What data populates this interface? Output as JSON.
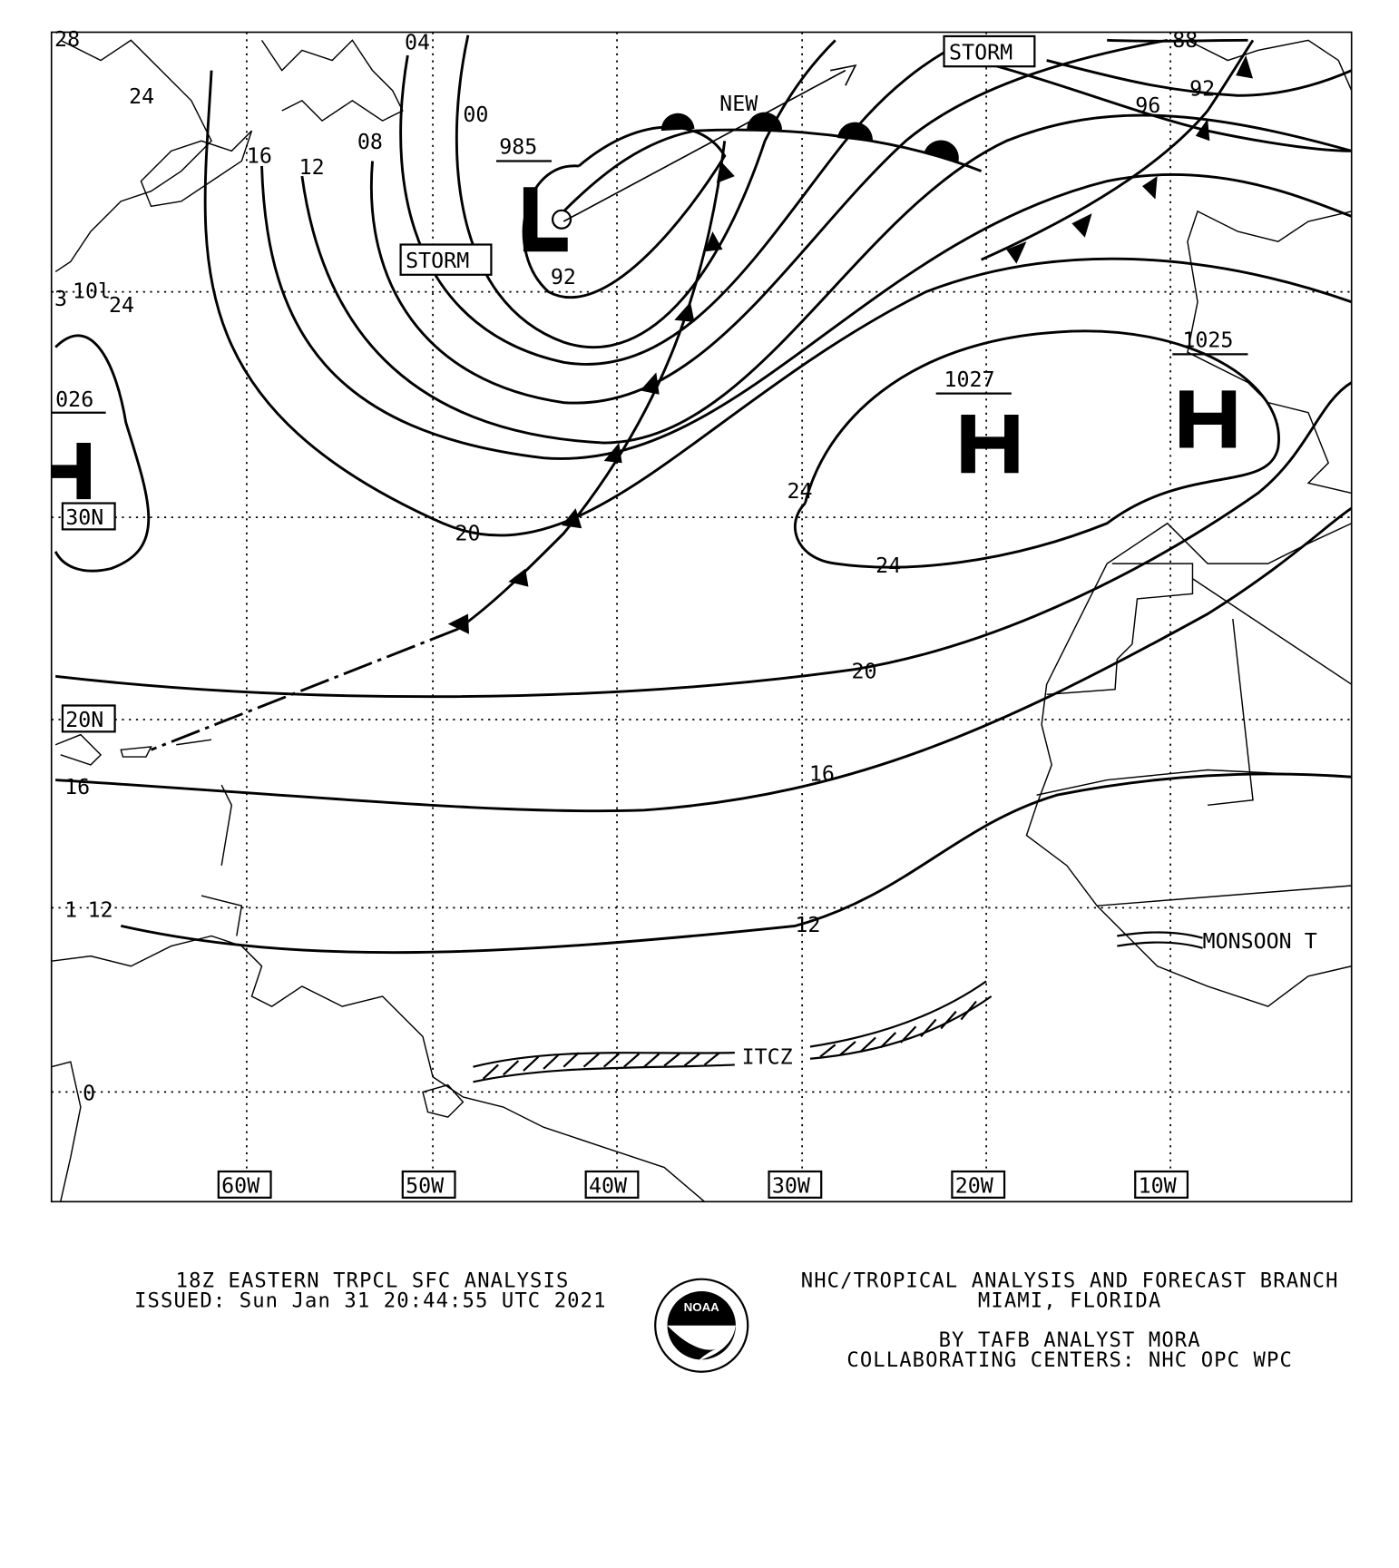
{
  "map": {
    "longitude_labels": [
      "60W",
      "50W",
      "40W",
      "30W",
      "20W",
      "10W"
    ],
    "latitude_labels": [
      "30N",
      "20N"
    ],
    "pressure_centers": [
      {
        "type": "L",
        "pressure": "985",
        "label": "STORM"
      },
      {
        "type": "H",
        "pressure": "1027"
      },
      {
        "type": "H",
        "pressure": "1025"
      },
      {
        "type": "H",
        "pressure": "026"
      }
    ],
    "storm_labels": [
      "STORM",
      "STORM"
    ],
    "new_label": "NEW",
    "isobar_labels": [
      "28",
      "24",
      "16",
      "12",
      "08",
      "04",
      "00",
      "92",
      "88",
      "92",
      "96",
      "24",
      "24",
      "24",
      "20",
      "20",
      "16",
      "16",
      "12",
      "12",
      "0"
    ],
    "feature_labels": {
      "itcz": "ITCZ",
      "monsoon": "MONSOON T"
    },
    "partial_labels": [
      "3",
      "10l",
      "1"
    ]
  },
  "footer": {
    "title": "18Z EASTERN TRPCL SFC ANALYSIS",
    "issued": "ISSUED: Sun Jan 31 20:44:55 UTC 2021",
    "org": "NHC/TROPICAL ANALYSIS AND FORECAST BRANCH",
    "location": "MIAMI,  FLORIDA",
    "analyst": "BY TAFB ANALYST  MORA",
    "centers": "COLLABORATING CENTERS: NHC OPC WPC",
    "logo_text": "NOAA"
  }
}
